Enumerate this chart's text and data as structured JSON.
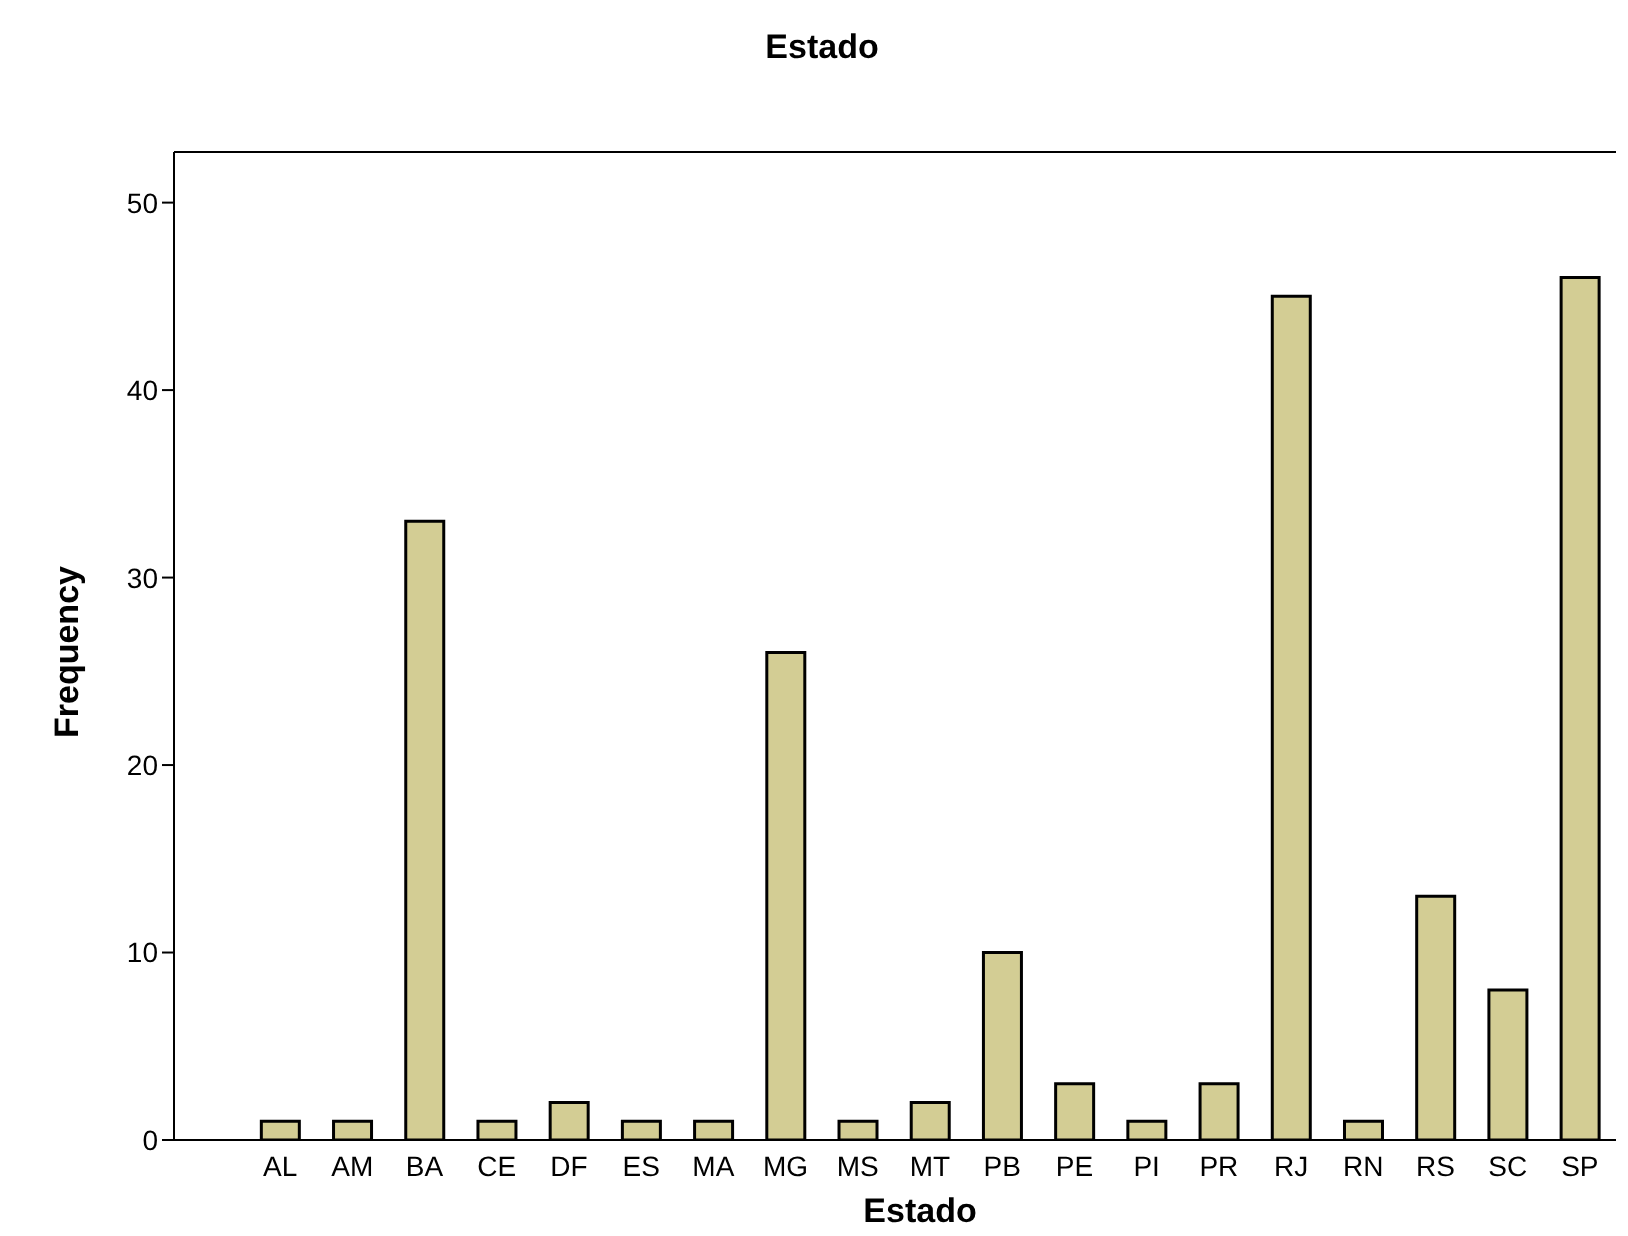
{
  "chart_data": {
    "type": "bar",
    "title": "Estado",
    "xlabel": "Estado",
    "ylabel": "Frequency",
    "categories": [
      "AL",
      "AM",
      "BA",
      "CE",
      "DF",
      "ES",
      "MA",
      "MG",
      "MS",
      "MT",
      "PB",
      "PE",
      "PI",
      "PR",
      "RJ",
      "RN",
      "RS",
      "SC",
      "SP"
    ],
    "values": [
      1,
      1,
      33,
      1,
      2,
      1,
      1,
      26,
      1,
      2,
      10,
      3,
      1,
      3,
      45,
      1,
      13,
      8,
      46
    ],
    "color": "#d3cd94",
    "ylim": [
      0,
      52.7
    ],
    "yticks": [
      0,
      10,
      20,
      30,
      40,
      50
    ]
  }
}
